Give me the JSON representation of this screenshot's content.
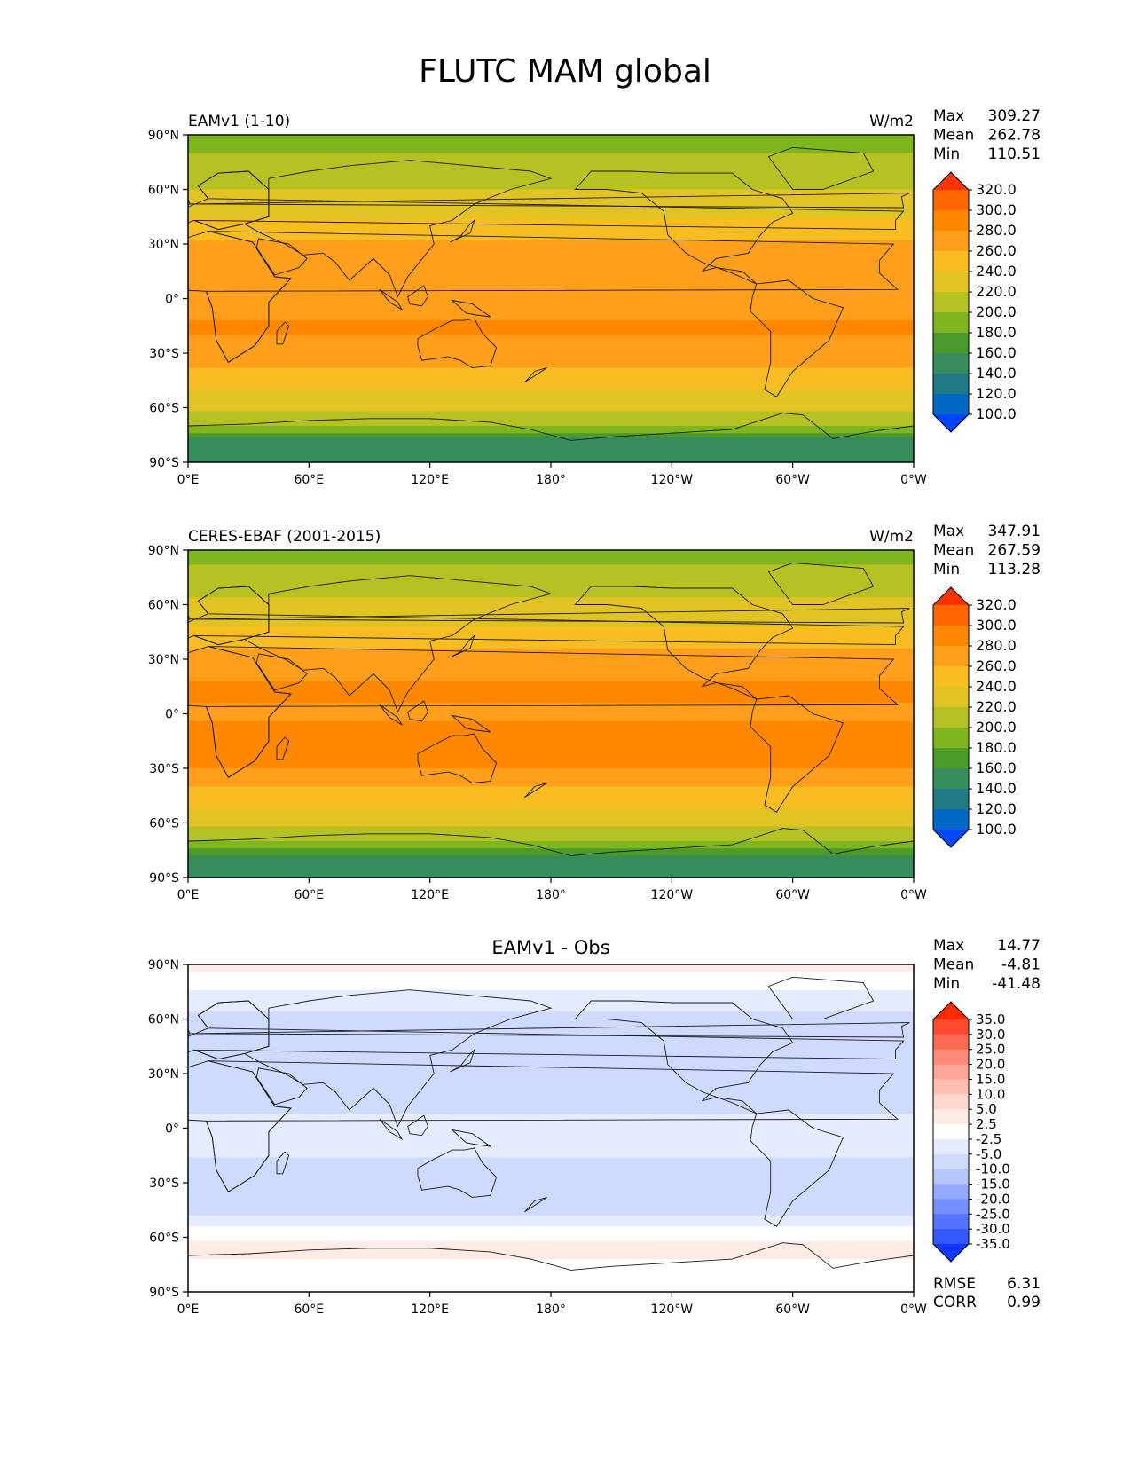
{
  "figure": {
    "title": "FLUTC MAM global"
  },
  "axes": {
    "lat_ticks": [
      "90°N",
      "60°N",
      "30°N",
      "0°",
      "30°S",
      "60°S",
      "90°S"
    ],
    "lon_ticks": [
      "0°E",
      "60°E",
      "120°E",
      "180°",
      "120°W",
      "60°W",
      "0°W"
    ]
  },
  "chart_data": [
    {
      "type": "heatmap",
      "title": "EAMv1 (1-10)",
      "units": "W/m2",
      "stats": [
        {
          "label": "Max",
          "value": "309.27"
        },
        {
          "label": "Mean",
          "value": "262.78"
        },
        {
          "label": "Min",
          "value": "110.51"
        }
      ],
      "colorbar": {
        "levels": [
          "320.0",
          "300.0",
          "280.0",
          "260.0",
          "240.0",
          "220.0",
          "200.0",
          "180.0",
          "160.0",
          "140.0",
          "120.0",
          "100.0"
        ],
        "colors": [
          "#ff3300",
          "#ff6600",
          "#ff8800",
          "#ff9f1c",
          "#f7bd21",
          "#e1c324",
          "#b5c222",
          "#7fb51d",
          "#4c9a2a",
          "#368c5b",
          "#1f7a86",
          "#0069c8",
          "#0045ff"
        ]
      },
      "zonal_mean": [
        {
          "lat": 90,
          "value": 190
        },
        {
          "lat": 75,
          "value": 205
        },
        {
          "lat": 60,
          "value": 220
        },
        {
          "lat": 45,
          "value": 238
        },
        {
          "lat": 30,
          "value": 262
        },
        {
          "lat": 15,
          "value": 278
        },
        {
          "lat": 0,
          "value": 272
        },
        {
          "lat": -15,
          "value": 282
        },
        {
          "lat": -30,
          "value": 275
        },
        {
          "lat": -45,
          "value": 248
        },
        {
          "lat": -60,
          "value": 222
        },
        {
          "lat": -70,
          "value": 205
        },
        {
          "lat": -78,
          "value": 150
        },
        {
          "lat": -90,
          "value": 140
        }
      ]
    },
    {
      "type": "heatmap",
      "title": "CERES-EBAF (2001-2015)",
      "units": "W/m2",
      "stats": [
        {
          "label": "Max",
          "value": "347.91"
        },
        {
          "label": "Mean",
          "value": "267.59"
        },
        {
          "label": "Min",
          "value": "113.28"
        }
      ],
      "colorbar": {
        "levels": [
          "320.0",
          "300.0",
          "280.0",
          "260.0",
          "240.0",
          "220.0",
          "200.0",
          "180.0",
          "160.0",
          "140.0",
          "120.0",
          "100.0"
        ],
        "colors": [
          "#ff3300",
          "#ff6600",
          "#ff8800",
          "#ff9f1c",
          "#f7bd21",
          "#e1c324",
          "#b5c222",
          "#7fb51d",
          "#4c9a2a",
          "#368c5b",
          "#1f7a86",
          "#0069c8",
          "#0045ff"
        ]
      },
      "zonal_mean": [
        {
          "lat": 90,
          "value": 192
        },
        {
          "lat": 75,
          "value": 208
        },
        {
          "lat": 60,
          "value": 225
        },
        {
          "lat": 45,
          "value": 245
        },
        {
          "lat": 30,
          "value": 268
        },
        {
          "lat": 15,
          "value": 283
        },
        {
          "lat": 0,
          "value": 278
        },
        {
          "lat": -15,
          "value": 285
        },
        {
          "lat": -30,
          "value": 280
        },
        {
          "lat": -45,
          "value": 252
        },
        {
          "lat": -60,
          "value": 225
        },
        {
          "lat": -70,
          "value": 205
        },
        {
          "lat": -78,
          "value": 155
        },
        {
          "lat": -90,
          "value": 142
        }
      ]
    },
    {
      "type": "heatmap",
      "title": "EAMv1 - Obs",
      "units": "",
      "stats": [
        {
          "label": "Max",
          "value": "14.77"
        },
        {
          "label": "Mean",
          "value": "-4.81"
        },
        {
          "label": "Min",
          "value": "-41.48"
        }
      ],
      "extra_stats": [
        {
          "label": "RMSE",
          "value": "6.31"
        },
        {
          "label": "CORR",
          "value": "0.99"
        }
      ],
      "colorbar": {
        "levels": [
          "35.0",
          "30.0",
          "25.0",
          "20.0",
          "15.0",
          "10.0",
          "5.0",
          "2.5",
          "-2.5",
          "-5.0",
          "-10.0",
          "-15.0",
          "-20.0",
          "-25.0",
          "-30.0",
          "-35.0"
        ],
        "colors": [
          "#ff2a00",
          "#ff4a2e",
          "#ff6a55",
          "#ff8a78",
          "#ffa597",
          "#ffbfb3",
          "#ffd6cd",
          "#ffebe6",
          "#ffffff",
          "#e6ecff",
          "#cfdaff",
          "#b5c6ff",
          "#94aaff",
          "#7490ff",
          "#5474ff",
          "#3358ff",
          "#1038ff"
        ]
      },
      "zonal_mean": [
        {
          "lat": 90,
          "value": 4
        },
        {
          "lat": 75,
          "value": -3
        },
        {
          "lat": 60,
          "value": -6
        },
        {
          "lat": 45,
          "value": -8
        },
        {
          "lat": 30,
          "value": -8
        },
        {
          "lat": 15,
          "value": -6
        },
        {
          "lat": 0,
          "value": -4
        },
        {
          "lat": -15,
          "value": -5
        },
        {
          "lat": -30,
          "value": -7
        },
        {
          "lat": -45,
          "value": -6
        },
        {
          "lat": -55,
          "value": -2
        },
        {
          "lat": -65,
          "value": 4
        },
        {
          "lat": -75,
          "value": 2
        },
        {
          "lat": -90,
          "value": 0
        }
      ]
    }
  ]
}
